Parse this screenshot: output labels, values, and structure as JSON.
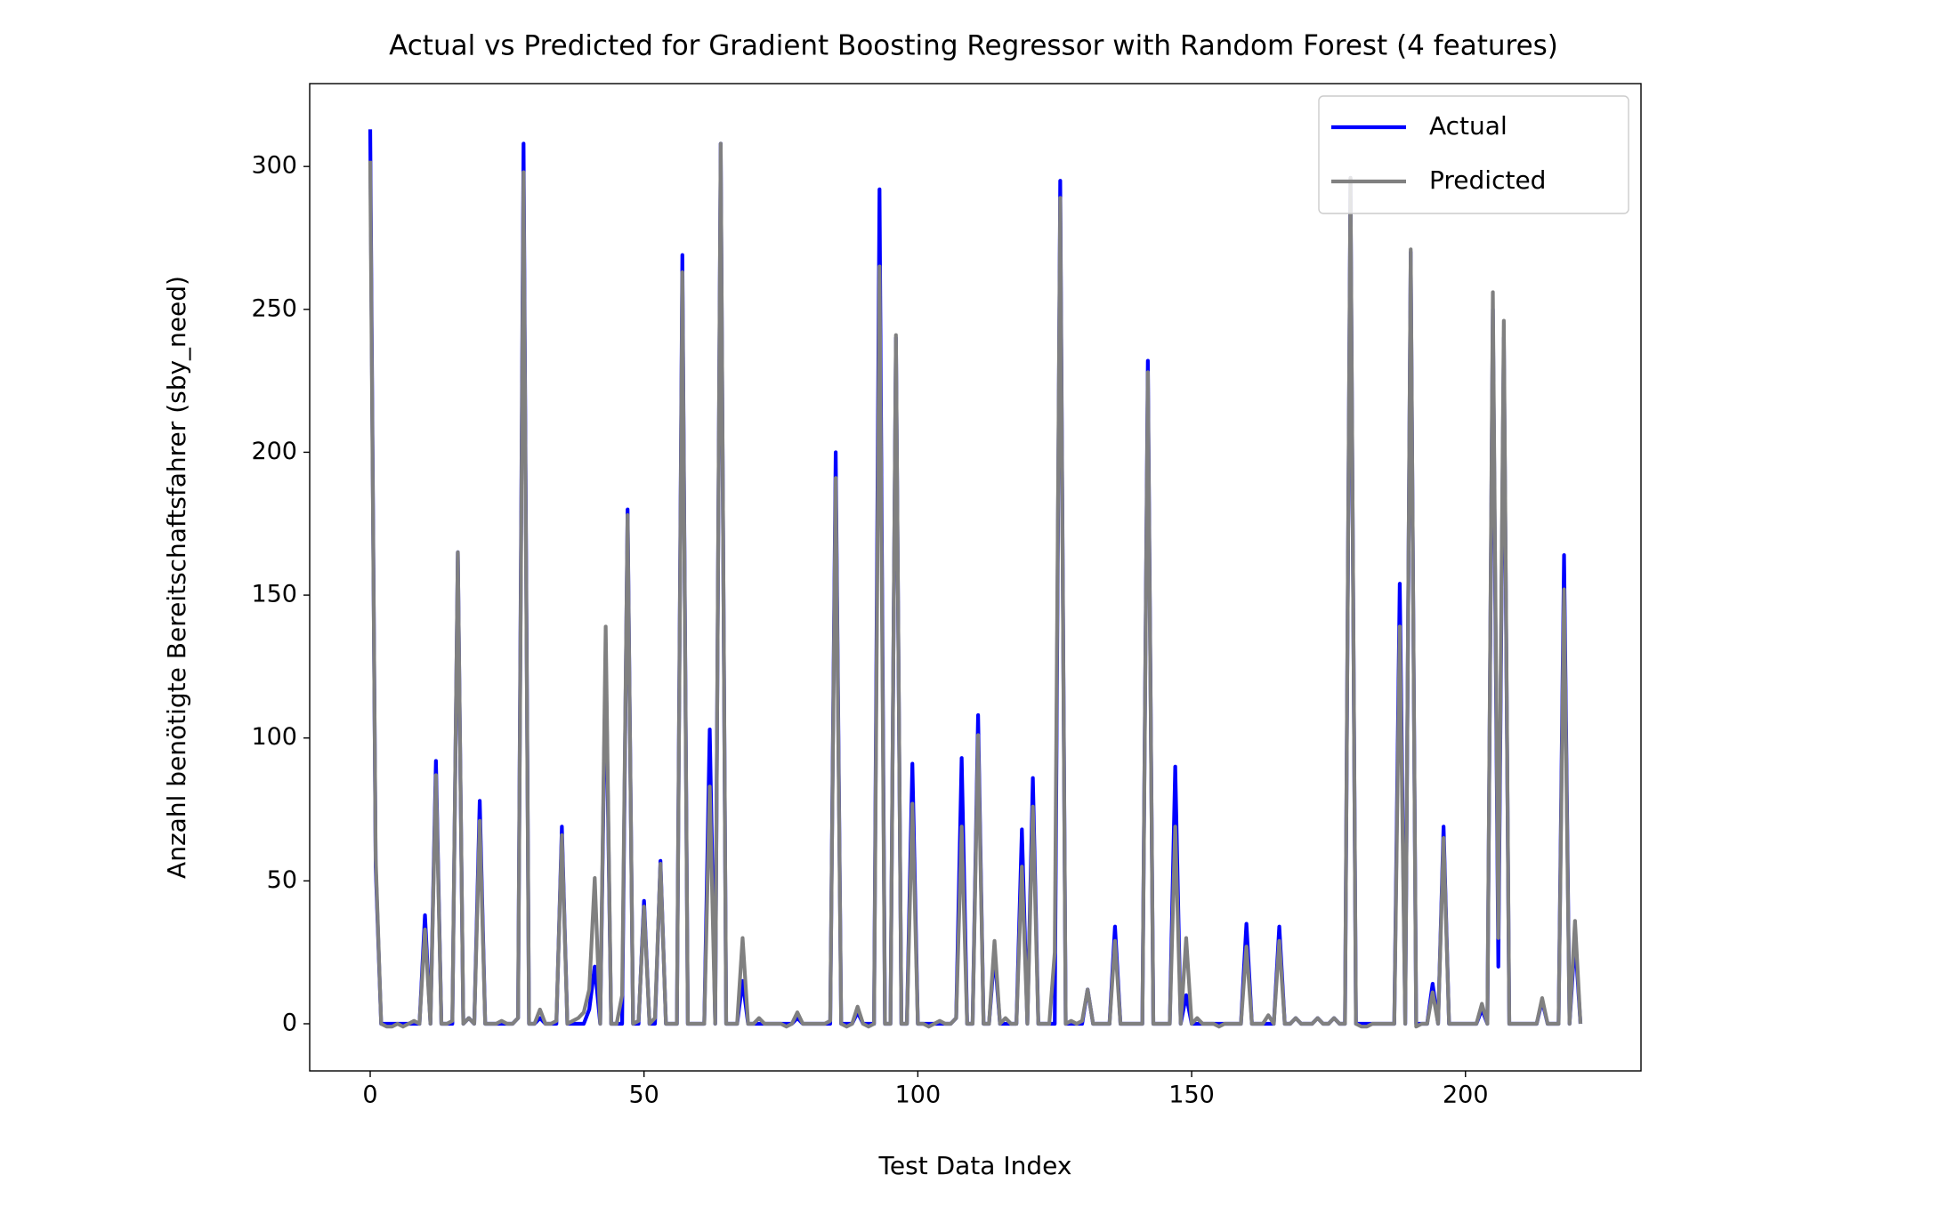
{
  "chart_data": {
    "type": "line",
    "title": "Actual vs Predicted for Gradient Boosting Regressor with Random Forest (4 features)",
    "x_label": "Test Data Index",
    "y_label": "Anzahl benötigte Bereitschaftsfahrer (sby_need)",
    "xlim": [
      -11.05,
      232.05
    ],
    "ylim": [
      -16.5,
      329
    ],
    "xticks": [
      0,
      50,
      100,
      150,
      200
    ],
    "yticks": [
      0,
      50,
      100,
      150,
      200,
      250,
      300
    ],
    "legend": "upper right",
    "x": [
      0,
      1,
      2,
      3,
      4,
      5,
      6,
      7,
      8,
      9,
      10,
      11,
      12,
      13,
      14,
      15,
      16,
      17,
      18,
      19,
      20,
      21,
      22,
      23,
      24,
      25,
      26,
      27,
      28,
      29,
      30,
      31,
      32,
      33,
      34,
      35,
      36,
      37,
      38,
      39,
      40,
      41,
      42,
      43,
      44,
      45,
      46,
      47,
      48,
      49,
      50,
      51,
      52,
      53,
      54,
      55,
      56,
      57,
      58,
      59,
      60,
      61,
      62,
      63,
      64,
      65,
      66,
      67,
      68,
      69,
      70,
      71,
      72,
      73,
      74,
      75,
      76,
      77,
      78,
      79,
      80,
      81,
      82,
      83,
      84,
      85,
      86,
      87,
      88,
      89,
      90,
      91,
      92,
      93,
      94,
      95,
      96,
      97,
      98,
      99,
      100,
      101,
      102,
      103,
      104,
      105,
      106,
      107,
      108,
      109,
      110,
      111,
      112,
      113,
      114,
      115,
      116,
      117,
      118,
      119,
      120,
      121,
      122,
      123,
      124,
      125,
      126,
      127,
      128,
      129,
      130,
      131,
      132,
      133,
      134,
      135,
      136,
      137,
      138,
      139,
      140,
      141,
      142,
      143,
      144,
      145,
      146,
      147,
      148,
      149,
      150,
      151,
      152,
      153,
      154,
      155,
      156,
      157,
      158,
      159,
      160,
      161,
      162,
      163,
      164,
      165,
      166,
      167,
      168,
      169,
      170,
      171,
      172,
      173,
      174,
      175,
      176,
      177,
      178,
      179,
      180,
      181,
      182,
      183,
      184,
      185,
      186,
      187,
      188,
      189,
      190,
      191,
      192,
      193,
      194,
      195,
      196,
      197,
      198,
      199,
      200,
      201,
      202,
      203,
      204,
      205,
      206,
      207,
      208,
      209,
      210,
      211,
      212,
      213,
      214,
      215,
      216,
      217,
      218,
      219,
      220,
      221
    ],
    "series": [
      {
        "name": "Actual",
        "color": "#0000ff",
        "values": [
          313,
          55,
          0,
          0,
          0,
          0,
          0,
          0,
          0,
          0,
          38,
          0,
          92,
          0,
          0,
          0,
          165,
          0,
          2,
          0,
          78,
          0,
          0,
          0,
          0,
          0,
          0,
          2,
          308,
          0,
          0,
          2,
          0,
          0,
          0,
          69,
          0,
          0,
          0,
          0,
          5,
          20,
          0,
          130,
          0,
          0,
          0,
          180,
          0,
          0,
          43,
          0,
          0,
          57,
          0,
          0,
          0,
          269,
          0,
          0,
          0,
          0,
          103,
          0,
          308,
          0,
          0,
          0,
          15,
          0,
          0,
          0,
          0,
          0,
          0,
          0,
          0,
          0,
          2,
          0,
          0,
          0,
          0,
          0,
          0,
          200,
          0,
          0,
          0,
          4,
          0,
          0,
          0,
          292,
          0,
          0,
          240,
          0,
          0,
          91,
          0,
          0,
          0,
          0,
          0,
          0,
          0,
          2,
          93,
          0,
          0,
          108,
          0,
          0,
          25,
          0,
          0,
          0,
          0,
          68,
          0,
          86,
          0,
          0,
          0,
          0,
          295,
          0,
          0,
          0,
          0,
          12,
          0,
          0,
          0,
          0,
          34,
          0,
          0,
          0,
          0,
          0,
          232,
          0,
          0,
          0,
          0,
          90,
          0,
          10,
          0,
          0,
          0,
          0,
          0,
          0,
          0,
          0,
          0,
          0,
          35,
          0,
          0,
          0,
          0,
          0,
          34,
          0,
          0,
          2,
          0,
          0,
          0,
          2,
          0,
          0,
          2,
          0,
          0,
          296,
          0,
          0,
          0,
          0,
          0,
          0,
          0,
          0,
          154,
          0,
          270,
          0,
          0,
          0,
          14,
          0,
          69,
          0,
          0,
          0,
          0,
          0,
          0,
          5,
          0,
          250,
          20,
          240,
          0,
          0,
          0,
          0,
          0,
          0,
          8,
          0,
          0,
          0,
          164,
          0,
          30,
          0
        ]
      },
      {
        "name": "Predicted",
        "color": "#808080",
        "values": [
          302,
          58,
          0,
          -1,
          -1,
          0,
          -1,
          0,
          1,
          0,
          33,
          0,
          87,
          0,
          0,
          1,
          165,
          0,
          2,
          0,
          71,
          0,
          0,
          0,
          1,
          0,
          0,
          2,
          298,
          0,
          0,
          5,
          0,
          0,
          1,
          66,
          0,
          1,
          2,
          4,
          12,
          51,
          0,
          139,
          0,
          0,
          10,
          178,
          0,
          1,
          41,
          0,
          2,
          56,
          0,
          0,
          0,
          263,
          0,
          0,
          0,
          0,
          83,
          0,
          308,
          0,
          0,
          0,
          30,
          0,
          0,
          2,
          0,
          0,
          0,
          0,
          -1,
          0,
          4,
          0,
          0,
          0,
          0,
          0,
          1,
          191,
          0,
          -1,
          0,
          6,
          0,
          -1,
          0,
          265,
          0,
          0,
          241,
          0,
          0,
          77,
          0,
          0,
          -1,
          0,
          1,
          0,
          0,
          2,
          69,
          0,
          0,
          101,
          0,
          0,
          29,
          0,
          2,
          0,
          0,
          55,
          0,
          76,
          0,
          0,
          0,
          25,
          289,
          0,
          1,
          0,
          1,
          12,
          0,
          0,
          0,
          0,
          29,
          0,
          0,
          0,
          0,
          0,
          228,
          0,
          0,
          0,
          0,
          69,
          0,
          30,
          0,
          2,
          0,
          0,
          0,
          -1,
          0,
          0,
          0,
          0,
          27,
          0,
          0,
          0,
          3,
          0,
          29,
          0,
          0,
          2,
          0,
          0,
          0,
          2,
          0,
          0,
          2,
          0,
          0,
          296,
          0,
          -1,
          -1,
          0,
          0,
          0,
          0,
          0,
          139,
          0,
          271,
          -1,
          0,
          0,
          11,
          0,
          65,
          0,
          0,
          0,
          0,
          0,
          0,
          7,
          0,
          256,
          30,
          246,
          0,
          0,
          0,
          0,
          0,
          0,
          9,
          0,
          0,
          0,
          152,
          0,
          36,
          0
        ]
      }
    ]
  }
}
